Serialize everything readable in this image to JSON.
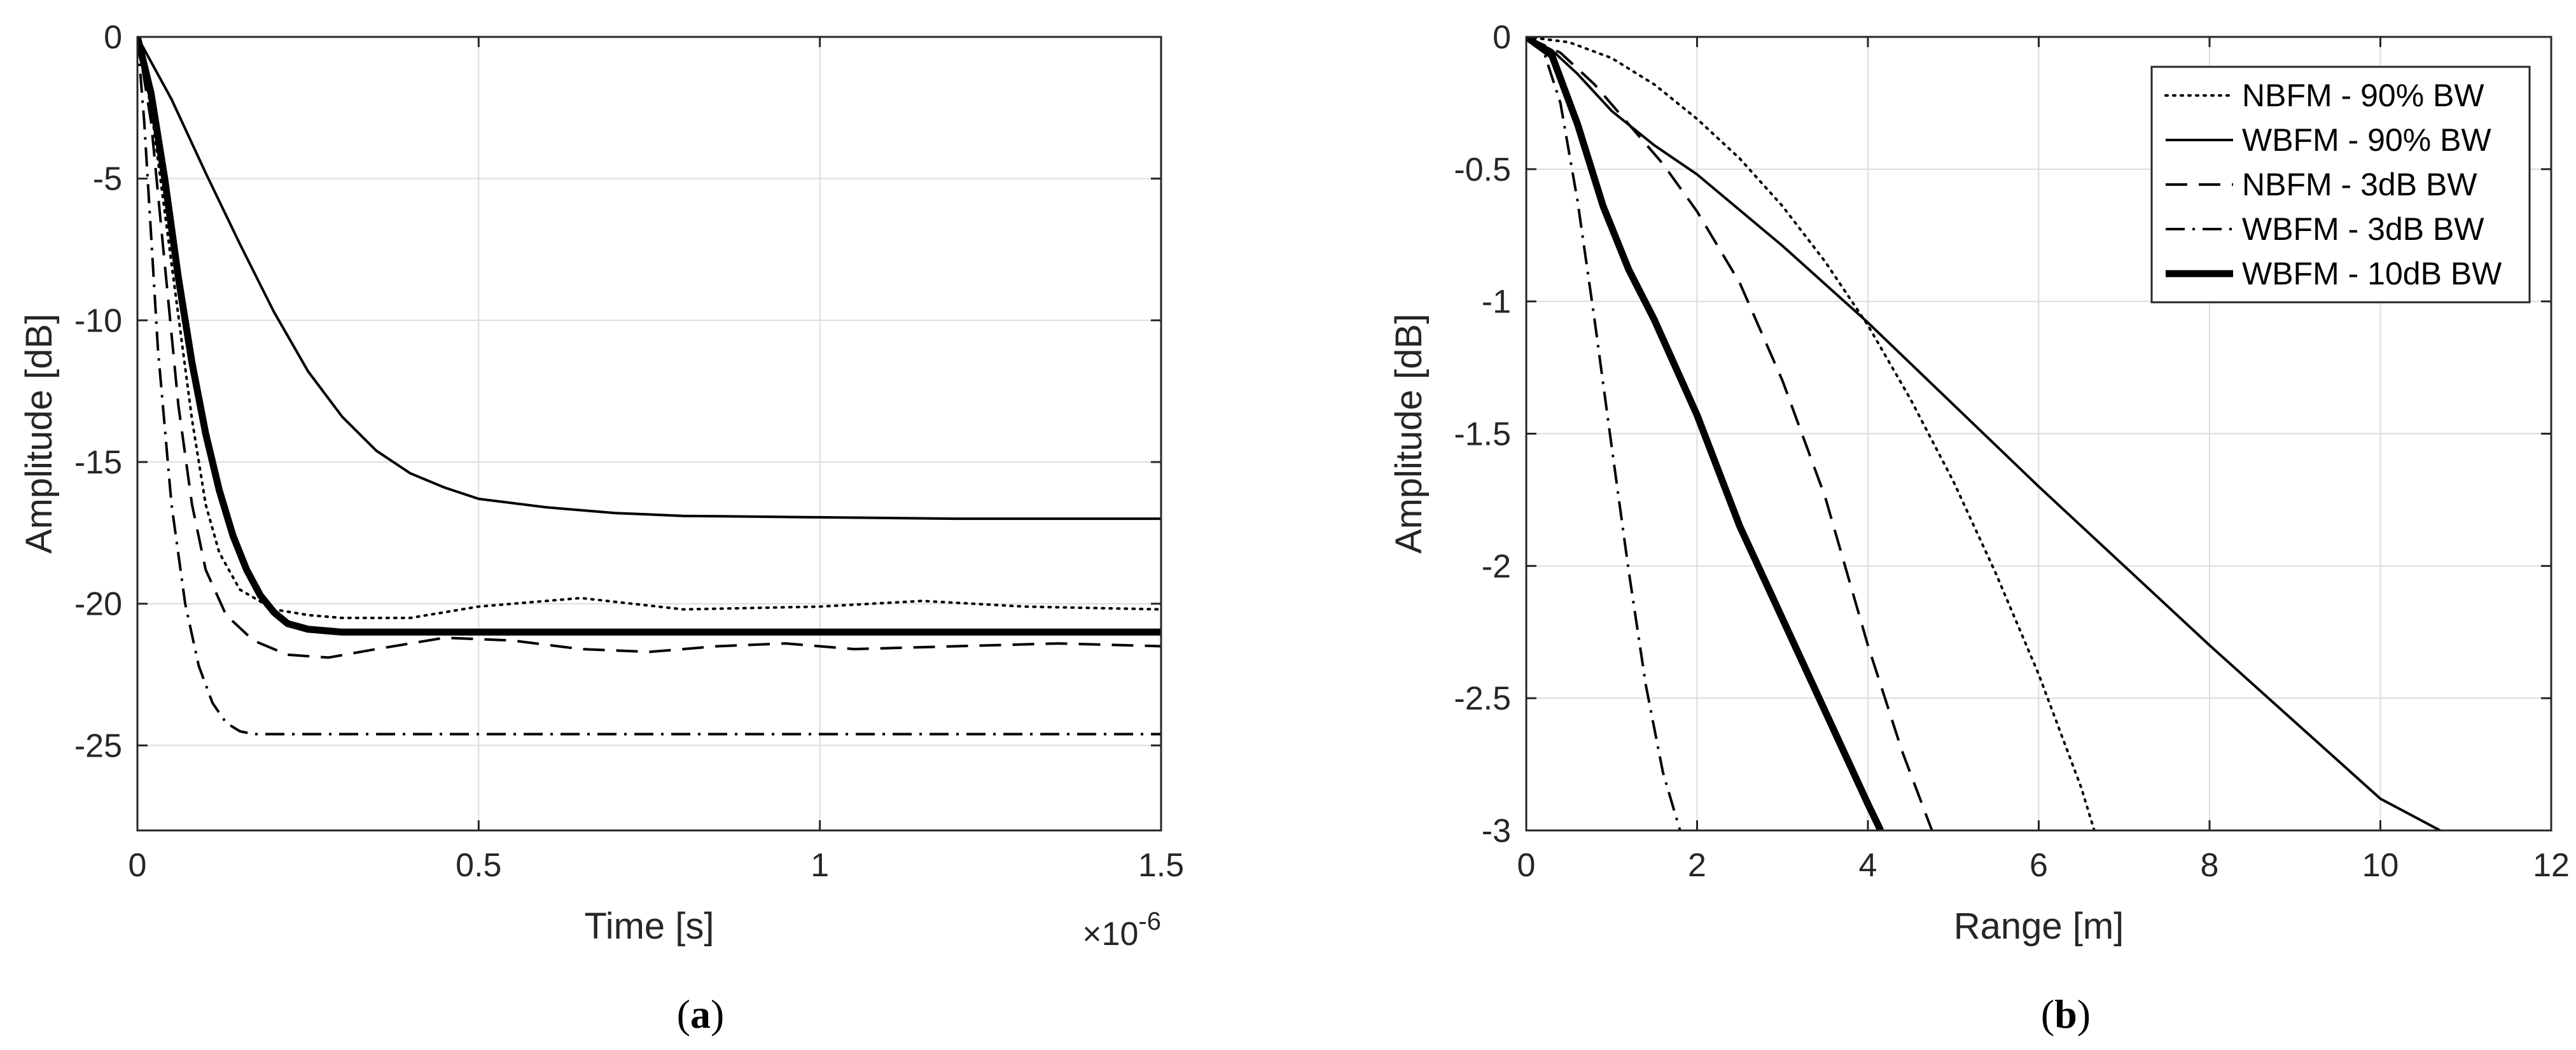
{
  "chart_data": [
    {
      "panel": "(a)",
      "caption_letter": "a",
      "type": "line",
      "xlabel": "Time [s]",
      "ylabel": "Amplitude [dB]",
      "x_exponent_label": "×10",
      "x_exponent_power": "-6",
      "xlim": [
        0,
        1.5
      ],
      "ylim": [
        -28,
        0
      ],
      "xticks": [
        0,
        0.5,
        1,
        1.5
      ],
      "xtick_labels": [
        "0",
        "0.5",
        "1",
        "1.5"
      ],
      "yticks": [
        0,
        -5,
        -10,
        -15,
        -20,
        -25
      ],
      "ytick_labels": [
        "0",
        "-5",
        "-10",
        "-15",
        "-20",
        "-25"
      ],
      "grid": true,
      "legend": "none",
      "series": [
        {
          "style": "dotted",
          "x": [
            0,
            0.02,
            0.05,
            0.08,
            0.1,
            0.12,
            0.15,
            0.2,
            0.25,
            0.3,
            0.4,
            0.5,
            0.65,
            0.8,
            1.0,
            1.15,
            1.3,
            1.5
          ],
          "y": [
            0,
            -2.5,
            -8,
            -13.5,
            -16.5,
            -18.2,
            -19.5,
            -20.2,
            -20.4,
            -20.5,
            -20.5,
            -20.1,
            -19.8,
            -20.2,
            -20.1,
            -19.9,
            -20.1,
            -20.2
          ]
        },
        {
          "style": "solid",
          "x": [
            0,
            0.05,
            0.1,
            0.15,
            0.2,
            0.25,
            0.3,
            0.35,
            0.4,
            0.45,
            0.5,
            0.6,
            0.7,
            0.8,
            1.0,
            1.2,
            1.5
          ],
          "y": [
            0,
            -2.2,
            -4.8,
            -7.3,
            -9.7,
            -11.8,
            -13.4,
            -14.6,
            -15.4,
            -15.9,
            -16.3,
            -16.6,
            -16.8,
            -16.9,
            -16.95,
            -17,
            -17
          ]
        },
        {
          "style": "dashed",
          "x": [
            0,
            0.02,
            0.04,
            0.06,
            0.08,
            0.1,
            0.13,
            0.17,
            0.22,
            0.28,
            0.35,
            0.45,
            0.55,
            0.65,
            0.75,
            0.85,
            0.95,
            1.05,
            1.2,
            1.35,
            1.5
          ],
          "y": [
            0,
            -3,
            -8,
            -13,
            -16.5,
            -18.8,
            -20.4,
            -21.3,
            -21.8,
            -21.9,
            -21.6,
            -21.2,
            -21.3,
            -21.6,
            -21.7,
            -21.5,
            -21.4,
            -21.6,
            -21.5,
            -21.4,
            -21.5
          ]
        },
        {
          "style": "dashdot",
          "x": [
            0,
            0.01,
            0.02,
            0.03,
            0.05,
            0.07,
            0.09,
            0.11,
            0.13,
            0.15,
            0.17,
            0.2,
            0.3,
            0.5,
            0.8,
            1.0,
            1.5
          ],
          "y": [
            0,
            -3,
            -7,
            -11,
            -16.5,
            -20,
            -22.2,
            -23.5,
            -24.2,
            -24.5,
            -24.6,
            -24.6,
            -24.6,
            -24.6,
            -24.6,
            -24.6,
            -24.6
          ]
        },
        {
          "style": "thick",
          "x": [
            0,
            0.02,
            0.04,
            0.06,
            0.08,
            0.1,
            0.12,
            0.14,
            0.16,
            0.18,
            0.2,
            0.22,
            0.25,
            0.3,
            0.4,
            0.5,
            0.8,
            1.0,
            1.5
          ],
          "y": [
            0,
            -2,
            -5,
            -8.5,
            -11.5,
            -14,
            -16,
            -17.6,
            -18.8,
            -19.7,
            -20.3,
            -20.7,
            -20.9,
            -21,
            -21,
            -21,
            -21,
            -21,
            -21
          ]
        }
      ]
    },
    {
      "panel": "(b)",
      "caption_letter": "b",
      "type": "line",
      "xlabel": "Range [m]",
      "ylabel": "Amplitude [dB]",
      "xlim": [
        0,
        12
      ],
      "ylim": [
        -3,
        0
      ],
      "xticks": [
        0,
        2,
        4,
        6,
        8,
        10,
        12
      ],
      "xtick_labels": [
        "0",
        "2",
        "4",
        "6",
        "8",
        "10",
        "12"
      ],
      "yticks": [
        0,
        -0.5,
        -1,
        -1.5,
        -2,
        -2.5,
        -3
      ],
      "ytick_labels": [
        "0",
        "-0.5",
        "-1",
        "-1.5",
        "-2",
        "-2.5",
        "-3"
      ],
      "grid": true,
      "legend": "top-right",
      "series": [
        {
          "name": "NBFM - 90% BW",
          "style": "dotted",
          "x": [
            0,
            0.5,
            1,
            1.5,
            2,
            2.5,
            3,
            3.5,
            4,
            4.5,
            5,
            5.5,
            6,
            6.5,
            6.65
          ],
          "y": [
            0,
            -0.02,
            -0.08,
            -0.18,
            -0.31,
            -0.46,
            -0.64,
            -0.85,
            -1.09,
            -1.37,
            -1.68,
            -2.03,
            -2.41,
            -2.84,
            -3.0
          ]
        },
        {
          "name": "WBFM - 90% BW",
          "style": "solid",
          "x": [
            0,
            0.3,
            0.6,
            1,
            1.5,
            2,
            3,
            4,
            5,
            6,
            7,
            8,
            9,
            10,
            10.7
          ],
          "y": [
            0,
            -0.05,
            -0.14,
            -0.28,
            -0.41,
            -0.52,
            -0.79,
            -1.08,
            -1.39,
            -1.7,
            -2.0,
            -2.3,
            -2.59,
            -2.88,
            -3.0
          ]
        },
        {
          "name": "NBFM - 3dB BW",
          "style": "dashed",
          "x": [
            0,
            0.4,
            0.8,
            1.2,
            1.6,
            2,
            2.5,
            3,
            3.5,
            4,
            4.4,
            4.75
          ],
          "y": [
            0,
            -0.06,
            -0.18,
            -0.33,
            -0.48,
            -0.66,
            -0.93,
            -1.3,
            -1.74,
            -2.3,
            -2.7,
            -3.0
          ]
        },
        {
          "name": "WBFM - 3dB BW",
          "style": "dashdot",
          "x": [
            0,
            0.2,
            0.4,
            0.6,
            0.8,
            1.0,
            1.2,
            1.4,
            1.6,
            1.8
          ],
          "y": [
            0,
            -0.05,
            -0.25,
            -0.62,
            -1.07,
            -1.55,
            -2.02,
            -2.45,
            -2.78,
            -3.0
          ]
        },
        {
          "name": "WBFM - 10dB BW",
          "style": "thick",
          "x": [
            0,
            0.3,
            0.6,
            0.9,
            1.2,
            1.5,
            2,
            2.5,
            3,
            3.5,
            4,
            4.15
          ],
          "y": [
            0,
            -0.07,
            -0.33,
            -0.64,
            -0.88,
            -1.07,
            -1.43,
            -1.85,
            -2.2,
            -2.55,
            -2.9,
            -3.0
          ]
        }
      ]
    }
  ]
}
